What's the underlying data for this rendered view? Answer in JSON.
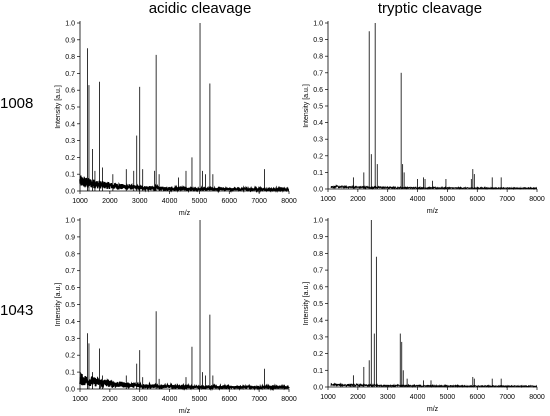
{
  "column_titles": [
    "acidic cleavage",
    "tryptic cleavage"
  ],
  "row_titles": [
    "1008",
    "1043"
  ],
  "chart_data": [
    {
      "type": "line",
      "xlabel": "m/z",
      "ylabel": "Intensity [a.u.]",
      "xlim": [
        1000,
        8000
      ],
      "ylim": [
        0,
        1.0
      ],
      "xticks": [
        1000,
        2000,
        3000,
        4000,
        5000,
        6000,
        7000,
        8000
      ],
      "yticks": [
        0.0,
        0.1,
        0.2,
        0.3,
        0.4,
        0.5,
        0.6,
        0.7,
        0.8,
        0.9,
        1.0
      ],
      "peaks": [
        {
          "x": 1250,
          "y": 0.85
        },
        {
          "x": 1300,
          "y": 0.63
        },
        {
          "x": 1420,
          "y": 0.25
        },
        {
          "x": 1500,
          "y": 0.12
        },
        {
          "x": 1650,
          "y": 0.65
        },
        {
          "x": 1750,
          "y": 0.14
        },
        {
          "x": 2100,
          "y": 0.1
        },
        {
          "x": 2550,
          "y": 0.13
        },
        {
          "x": 2800,
          "y": 0.12
        },
        {
          "x": 2900,
          "y": 0.33
        },
        {
          "x": 3000,
          "y": 0.62
        },
        {
          "x": 3100,
          "y": 0.13
        },
        {
          "x": 3500,
          "y": 0.12
        },
        {
          "x": 3550,
          "y": 0.81
        },
        {
          "x": 3650,
          "y": 0.1
        },
        {
          "x": 4300,
          "y": 0.08
        },
        {
          "x": 4550,
          "y": 0.12
        },
        {
          "x": 4750,
          "y": 0.2
        },
        {
          "x": 5020,
          "y": 1.0
        },
        {
          "x": 5100,
          "y": 0.12
        },
        {
          "x": 5200,
          "y": 0.1
        },
        {
          "x": 5350,
          "y": 0.64
        },
        {
          "x": 5450,
          "y": 0.1
        },
        {
          "x": 7180,
          "y": 0.13
        }
      ]
    },
    {
      "type": "line",
      "xlabel": "m/z",
      "ylabel": "Intensity [a.u.]",
      "xlim": [
        1000,
        8000
      ],
      "ylim": [
        0,
        1.0
      ],
      "xticks": [
        1000,
        2000,
        3000,
        4000,
        5000,
        6000,
        7000,
        8000
      ],
      "yticks": [
        0.0,
        0.1,
        0.2,
        0.3,
        0.4,
        0.5,
        0.6,
        0.7,
        0.8,
        0.9,
        1.0
      ],
      "peaks": [
        {
          "x": 1850,
          "y": 0.07
        },
        {
          "x": 2200,
          "y": 0.1
        },
        {
          "x": 2380,
          "y": 0.95
        },
        {
          "x": 2450,
          "y": 0.21
        },
        {
          "x": 2580,
          "y": 1.0
        },
        {
          "x": 2650,
          "y": 0.15
        },
        {
          "x": 3450,
          "y": 0.7
        },
        {
          "x": 3500,
          "y": 0.15
        },
        {
          "x": 3550,
          "y": 0.1
        },
        {
          "x": 4000,
          "y": 0.06
        },
        {
          "x": 4200,
          "y": 0.07
        },
        {
          "x": 4250,
          "y": 0.06
        },
        {
          "x": 4500,
          "y": 0.05
        },
        {
          "x": 4950,
          "y": 0.06
        },
        {
          "x": 5800,
          "y": 0.06
        },
        {
          "x": 5850,
          "y": 0.12
        },
        {
          "x": 5900,
          "y": 0.09
        },
        {
          "x": 6500,
          "y": 0.07
        },
        {
          "x": 6800,
          "y": 0.07
        }
      ]
    },
    {
      "type": "line",
      "xlabel": "m/z",
      "ylabel": "Intensity [a.u.]",
      "xlim": [
        1000,
        8000
      ],
      "ylim": [
        0,
        1.0
      ],
      "xticks": [
        1000,
        2000,
        3000,
        4000,
        5000,
        6000,
        7000,
        8000
      ],
      "yticks": [
        0.0,
        0.1,
        0.2,
        0.3,
        0.4,
        0.5,
        0.6,
        0.7,
        0.8,
        0.9,
        1.0
      ],
      "peaks": [
        {
          "x": 1250,
          "y": 0.33
        },
        {
          "x": 1300,
          "y": 0.27
        },
        {
          "x": 1420,
          "y": 0.1
        },
        {
          "x": 1650,
          "y": 0.24
        },
        {
          "x": 1750,
          "y": 0.08
        },
        {
          "x": 2550,
          "y": 0.08
        },
        {
          "x": 2900,
          "y": 0.15
        },
        {
          "x": 3000,
          "y": 0.23
        },
        {
          "x": 3100,
          "y": 0.07
        },
        {
          "x": 3550,
          "y": 0.46
        },
        {
          "x": 3650,
          "y": 0.06
        },
        {
          "x": 4550,
          "y": 0.07
        },
        {
          "x": 4750,
          "y": 0.25
        },
        {
          "x": 5020,
          "y": 1.0
        },
        {
          "x": 5100,
          "y": 0.1
        },
        {
          "x": 5200,
          "y": 0.08
        },
        {
          "x": 5350,
          "y": 0.44
        },
        {
          "x": 5450,
          "y": 0.08
        },
        {
          "x": 7180,
          "y": 0.12
        }
      ]
    },
    {
      "type": "line",
      "xlabel": "m/z",
      "ylabel": "Intensity [a.u.]",
      "xlim": [
        1000,
        8000
      ],
      "ylim": [
        0,
        1.0
      ],
      "xticks": [
        1000,
        2000,
        3000,
        4000,
        5000,
        6000,
        7000,
        8000
      ],
      "yticks": [
        0.0,
        0.1,
        0.2,
        0.3,
        0.4,
        0.5,
        0.6,
        0.7,
        0.8,
        0.9,
        1.0
      ],
      "peaks": [
        {
          "x": 1850,
          "y": 0.07
        },
        {
          "x": 2200,
          "y": 0.12
        },
        {
          "x": 2380,
          "y": 0.16
        },
        {
          "x": 2450,
          "y": 1.0
        },
        {
          "x": 2550,
          "y": 0.32
        },
        {
          "x": 2620,
          "y": 0.78
        },
        {
          "x": 3420,
          "y": 0.32
        },
        {
          "x": 3470,
          "y": 0.27
        },
        {
          "x": 3520,
          "y": 0.1
        },
        {
          "x": 3650,
          "y": 0.05
        },
        {
          "x": 4200,
          "y": 0.04
        },
        {
          "x": 4450,
          "y": 0.04
        },
        {
          "x": 5850,
          "y": 0.06
        },
        {
          "x": 5900,
          "y": 0.05
        },
        {
          "x": 6500,
          "y": 0.05
        },
        {
          "x": 6800,
          "y": 0.05
        }
      ]
    }
  ]
}
